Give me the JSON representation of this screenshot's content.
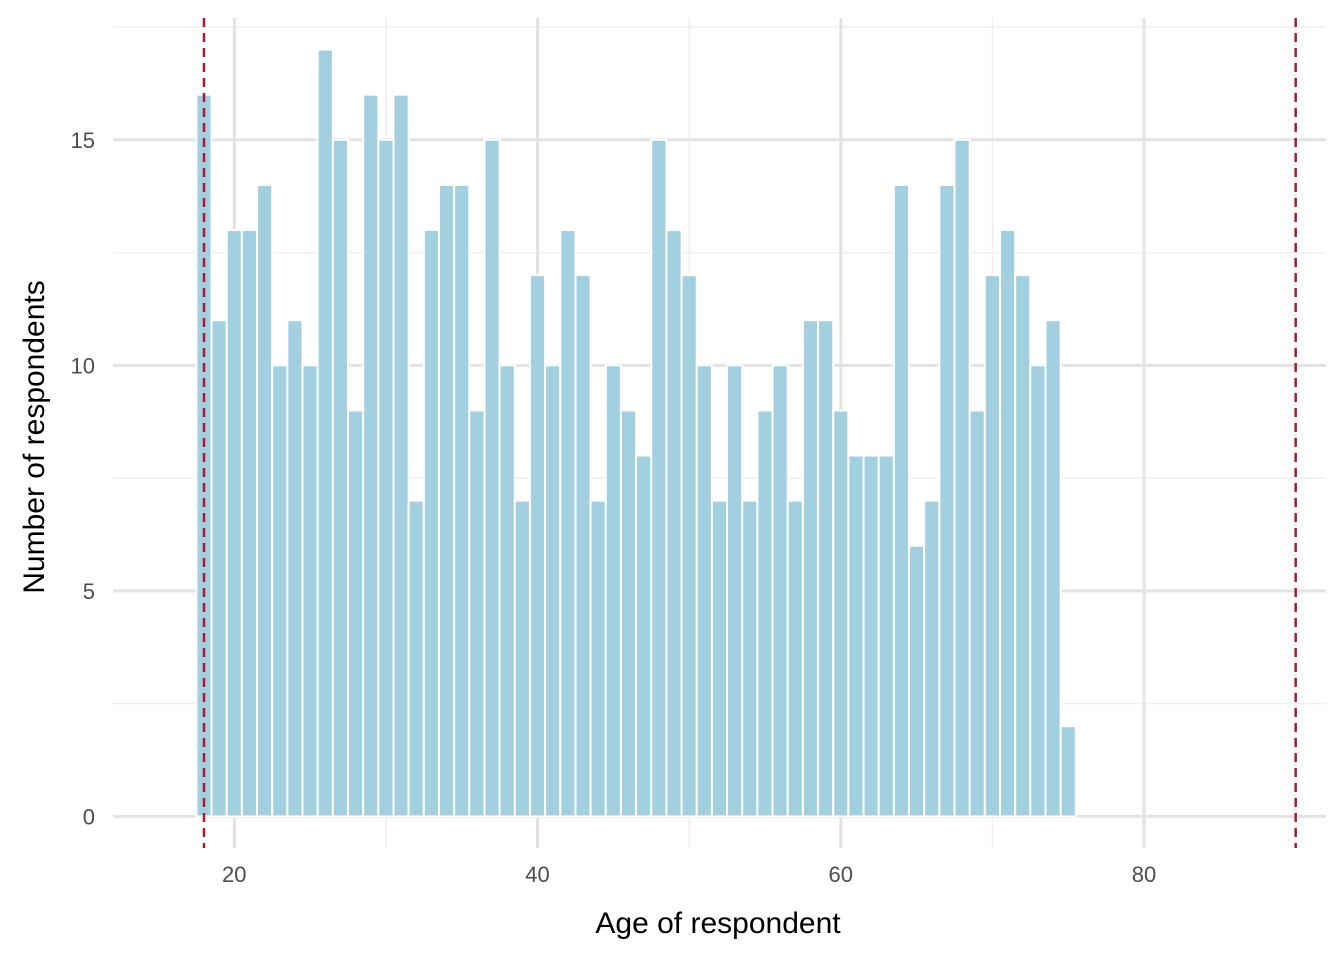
{
  "chart_data": {
    "type": "bar",
    "xlabel": "Age of respondent",
    "ylabel": "Number of respondents",
    "x": [
      18,
      19,
      20,
      21,
      22,
      23,
      24,
      25,
      26,
      27,
      28,
      29,
      30,
      31,
      32,
      33,
      34,
      35,
      36,
      37,
      38,
      39,
      40,
      41,
      42,
      43,
      44,
      45,
      46,
      47,
      48,
      49,
      50,
      51,
      52,
      53,
      54,
      55,
      56,
      57,
      58,
      59,
      60,
      61,
      62,
      63,
      64,
      65,
      66,
      67,
      68,
      69,
      70,
      71,
      72,
      73,
      74,
      75
    ],
    "values": [
      16,
      11,
      13,
      13,
      14,
      10,
      11,
      10,
      17,
      15,
      9,
      16,
      15,
      16,
      7,
      13,
      14,
      14,
      9,
      15,
      10,
      7,
      12,
      10,
      13,
      12,
      7,
      10,
      9,
      8,
      15,
      13,
      12,
      10,
      7,
      10,
      7,
      9,
      10,
      7,
      11,
      11,
      9,
      8,
      8,
      8,
      14,
      6,
      7,
      14,
      15,
      9,
      12,
      13,
      12,
      10,
      11,
      2
    ],
    "xlim": [
      12,
      92
    ],
    "ylim": [
      -0.7,
      17.7
    ],
    "x_ticks": [
      20,
      40,
      60,
      80
    ],
    "x_tick_labels": [
      "20",
      "40",
      "60",
      "80"
    ],
    "y_ticks": [
      0,
      5,
      10,
      15
    ],
    "y_tick_labels": [
      "0",
      "5",
      "10",
      "15"
    ],
    "reference_lines": [
      18,
      90
    ],
    "grid": true,
    "legend": false,
    "colors": {
      "bar_fill": "#a3d0e1",
      "bar_outline": "#ffffff",
      "reference_line": "#b2182b",
      "grid_major": "#e3e3e3",
      "grid_minor": "#efefef",
      "tick_text": "#4d4d4d"
    }
  }
}
